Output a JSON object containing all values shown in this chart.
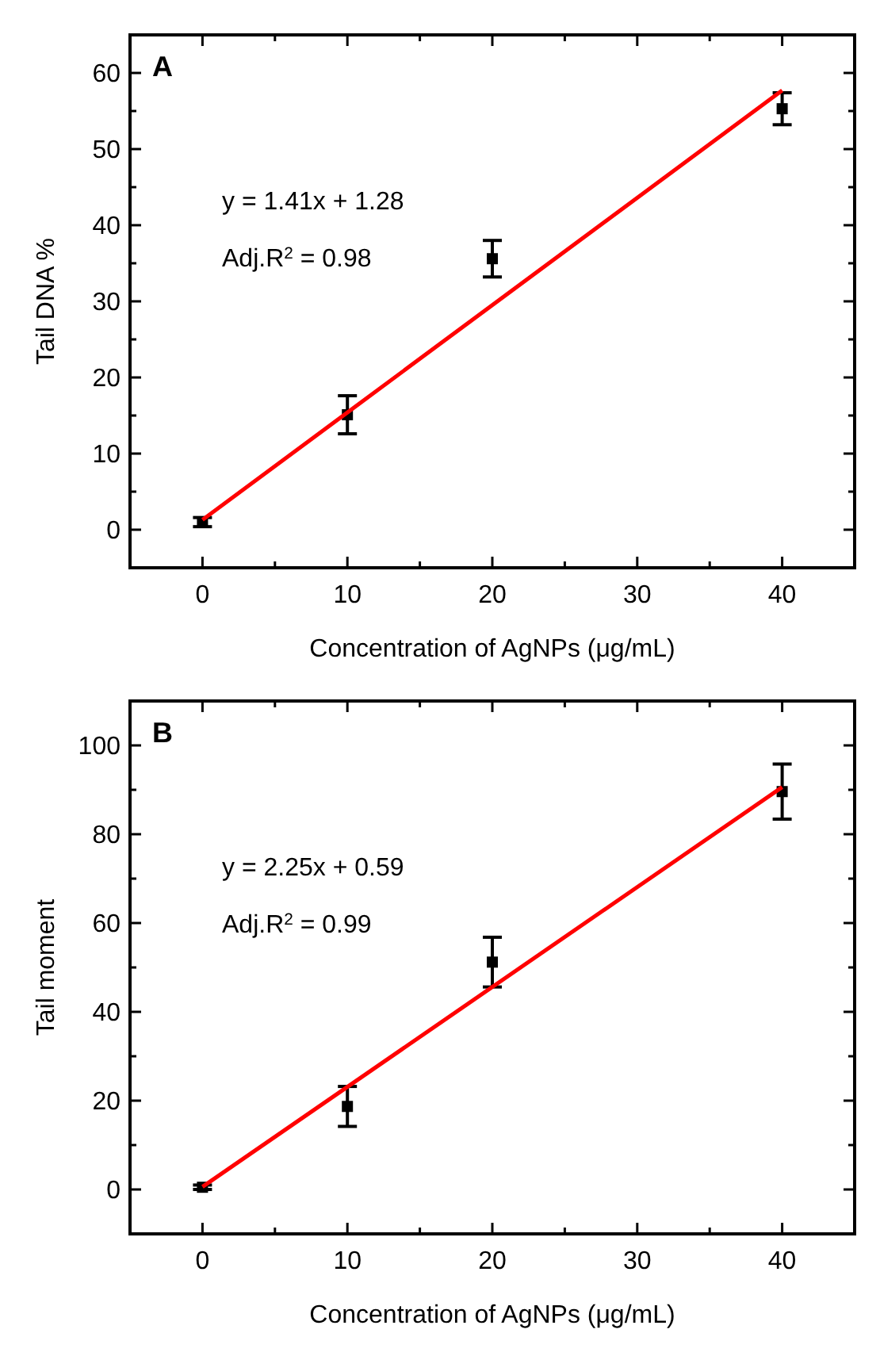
{
  "chart_data": [
    {
      "type": "scatter",
      "title": "A",
      "xlabel": "Concentration of AgNPs (μg/mL)",
      "ylabel": "Tail DNA %",
      "xlim": [
        -5,
        45
      ],
      "ylim": [
        -5,
        65
      ],
      "xticks": [
        0,
        {
          "value": 5,
          "label": null
        },
        10,
        {
          "value": 15,
          "label": null
        },
        20,
        {
          "value": 25,
          "label": null
        },
        30,
        {
          "value": 35,
          "label": null
        },
        40
      ],
      "yticks": [
        0,
        {
          "value": 5,
          "label": null
        },
        10,
        {
          "value": 15,
          "label": null
        },
        20,
        {
          "value": 25,
          "label": null
        },
        30,
        {
          "value": 35,
          "label": null
        },
        40,
        {
          "value": 45,
          "label": null
        },
        50,
        {
          "value": 55,
          "label": null
        },
        60
      ],
      "annotations": [
        "y = 1.41x + 1.28",
        "Adj.R$^{2}$ = 0.98"
      ],
      "grid": false,
      "series": [
        {
          "color": "#000000",
          "marker": "square",
          "x": [
            0,
            10,
            20,
            40
          ],
          "values": [
            1.0,
            15.1,
            35.6,
            55.3
          ],
          "errors": [
            0.6,
            2.5,
            2.4,
            2.1
          ]
        },
        {
          "type": "line",
          "color": "#ff0000",
          "line_style": "solid",
          "x": [
            0,
            40
          ],
          "values": [
            1.3,
            57.7
          ]
        }
      ]
    },
    {
      "type": "scatter",
      "title": "B",
      "xlabel": "Concentration of AgNPs (μg/mL)",
      "ylabel": "Tail moment",
      "xlim": [
        -5,
        45
      ],
      "ylim": [
        -10,
        110
      ],
      "xticks": [
        0,
        {
          "value": 5,
          "label": null
        },
        10,
        {
          "value": 15,
          "label": null
        },
        20,
        {
          "value": 25,
          "label": null
        },
        30,
        {
          "value": 35,
          "label": null
        },
        40
      ],
      "yticks": [
        0,
        {
          "value": 10,
          "label": null
        },
        20,
        {
          "value": 30,
          "label": null
        },
        40,
        {
          "value": 50,
          "label": null
        },
        60,
        {
          "value": 70,
          "label": null
        },
        80,
        {
          "value": 90,
          "label": null
        },
        100
      ],
      "annotations": [
        "y = 2.25x + 0.59",
        "Adj.R$^{2}$ = 0.99"
      ],
      "grid": false,
      "series": [
        {
          "color": "#000000",
          "marker": "square",
          "x": [
            0,
            10,
            20,
            40
          ],
          "values": [
            0.5,
            18.7,
            51.2,
            89.6
          ],
          "errors": [
            0.5,
            4.5,
            5.6,
            6.2
          ]
        },
        {
          "type": "line",
          "color": "#ff0000",
          "line_style": "solid",
          "x": [
            0,
            40
          ],
          "values": [
            0.6,
            90.6
          ]
        }
      ]
    }
  ]
}
